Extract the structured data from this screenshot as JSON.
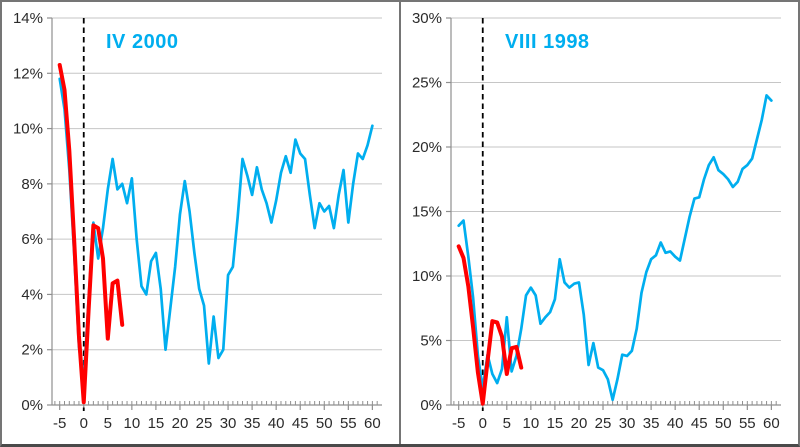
{
  "figure": {
    "description": "Two side-by-side line charts comparing unemployment-rate paths around reference month 0",
    "background": "#ffffff",
    "border_color": "#757575",
    "gridline_color": "#c6c6c6",
    "axis_color": "#8f8f8f",
    "tick_label_color": "#2b2b2b"
  },
  "chart_data": [
    {
      "type": "line",
      "title": "IV 2000",
      "title_color": "#00AEEF",
      "xlabel": "",
      "ylabel": "",
      "xlim": [
        -6.6,
        62
      ],
      "ylim": [
        0,
        14
      ],
      "grid": "horizontal",
      "legend": "none",
      "y_ticks": [
        0,
        2,
        4,
        6,
        8,
        10,
        12,
        14
      ],
      "y_tick_labels": [
        "0%",
        "2%",
        "4%",
        "6%",
        "8%",
        "10%",
        "12%",
        "14%"
      ],
      "x_ticks": [
        -5,
        0,
        5,
        10,
        15,
        20,
        25,
        30,
        35,
        40,
        45,
        50,
        55,
        60
      ],
      "x_tick_labels": [
        "-5",
        "0",
        "5",
        "10",
        "15",
        "20",
        "25",
        "30",
        "35",
        "40",
        "45",
        "50",
        "55",
        "60"
      ],
      "vline": {
        "x": 0,
        "style": "dashed",
        "color": "#000000"
      },
      "series": [
        {
          "name": "reference-episode-IV-2000",
          "color": "#00AEEF",
          "stroke_width": 2.7,
          "x_start": -5,
          "values": [
            11.8,
            10.7,
            8.5,
            5.5,
            2.1,
            0.9,
            3.8,
            6.6,
            5.3,
            6.4,
            7.8,
            8.9,
            7.8,
            8.0,
            7.3,
            8.2,
            6.0,
            4.3,
            4.0,
            5.2,
            5.5,
            4.2,
            2.0,
            3.5,
            5.0,
            6.9,
            8.1,
            7.0,
            5.5,
            4.2,
            3.6,
            1.5,
            3.2,
            1.7,
            2.0,
            4.7,
            5.0,
            6.8,
            8.9,
            8.3,
            7.6,
            8.6,
            7.8,
            7.3,
            6.6,
            7.4,
            8.4,
            9.0,
            8.4,
            9.6,
            9.1,
            8.9,
            7.6,
            6.4,
            7.3,
            7.0,
            7.2,
            6.4,
            7.6,
            8.5,
            6.6,
            8.0,
            9.1,
            8.9,
            9.4,
            10.1
          ]
        },
        {
          "name": "current-episode",
          "color": "#FF0000",
          "stroke_width": 4,
          "x_start": -5,
          "values": [
            12.3,
            11.4,
            9.2,
            6.0,
            2.5,
            0.1,
            3.4,
            6.5,
            6.4,
            5.3,
            2.4,
            4.4,
            4.5,
            2.9
          ]
        }
      ]
    },
    {
      "type": "line",
      "title": "VIII 1998",
      "title_color": "#00AEEF",
      "xlabel": "",
      "ylabel": "",
      "xlim": [
        -6.6,
        62
      ],
      "ylim": [
        0,
        30
      ],
      "grid": "horizontal",
      "legend": "none",
      "y_ticks": [
        0,
        5,
        10,
        15,
        20,
        25,
        30
      ],
      "y_tick_labels": [
        "0%",
        "5%",
        "10%",
        "15%",
        "20%",
        "25%",
        "30%"
      ],
      "x_ticks": [
        -5,
        0,
        5,
        10,
        15,
        20,
        25,
        30,
        35,
        40,
        45,
        50,
        55,
        60
      ],
      "x_tick_labels": [
        "-5",
        "0",
        "5",
        "10",
        "15",
        "20",
        "25",
        "30",
        "35",
        "40",
        "45",
        "50",
        "55",
        "60"
      ],
      "vline": {
        "x": 0,
        "style": "dashed",
        "color": "#000000"
      },
      "series": [
        {
          "name": "reference-episode-VIII-1998",
          "color": "#00AEEF",
          "stroke_width": 2.7,
          "x_start": -5,
          "values": [
            13.9,
            14.3,
            11.5,
            8.3,
            3.8,
            1.3,
            3.9,
            2.4,
            1.7,
            2.8,
            6.8,
            2.6,
            3.8,
            5.9,
            8.5,
            9.1,
            8.5,
            6.3,
            6.8,
            7.2,
            8.2,
            11.3,
            9.5,
            9.1,
            9.4,
            9.5,
            7.0,
            3.1,
            4.8,
            2.9,
            2.7,
            2.0,
            0.4,
            2.0,
            3.9,
            3.8,
            4.2,
            5.9,
            8.7,
            10.3,
            11.3,
            11.6,
            12.6,
            11.8,
            11.9,
            11.5,
            11.2,
            12.9,
            14.6,
            16.0,
            16.1,
            17.5,
            18.6,
            19.2,
            18.2,
            17.9,
            17.5,
            16.9,
            17.3,
            18.3,
            18.6,
            19.1,
            20.6,
            22.1,
            24.0,
            23.6
          ]
        },
        {
          "name": "current-episode",
          "color": "#FF0000",
          "stroke_width": 4,
          "x_start": -5,
          "values": [
            12.3,
            11.4,
            9.2,
            6.0,
            2.5,
            0.1,
            3.4,
            6.5,
            6.4,
            5.3,
            2.4,
            4.4,
            4.5,
            2.9
          ]
        }
      ]
    }
  ]
}
